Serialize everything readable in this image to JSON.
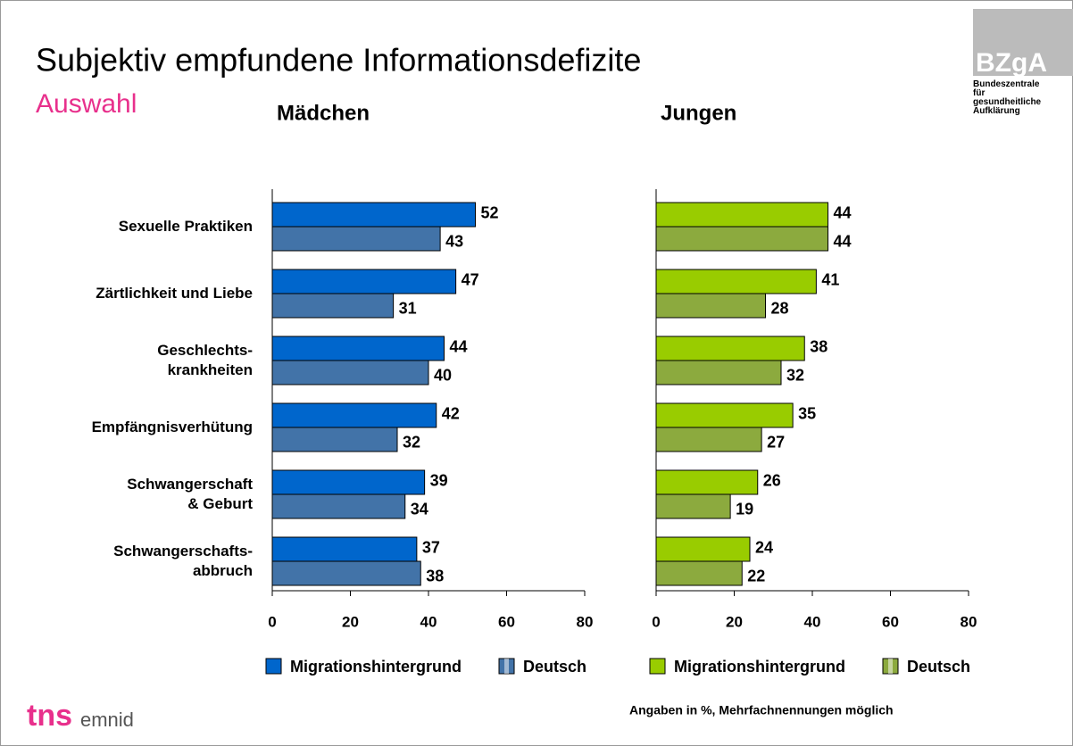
{
  "header": {
    "title": "Subjektiv empfundene Informationsdefizite",
    "subtitle": "Auswahl"
  },
  "logo": {
    "name": "BZgA",
    "text": "Bundeszentrale\nfür\ngesundheitliche\nAufklärung"
  },
  "tns_logo": {
    "brand": "tns",
    "name": "emnid"
  },
  "note": "Angaben in %,  Mehrfachnennungen möglich",
  "chart_data": [
    {
      "type": "bar",
      "orientation": "horizontal",
      "title": "Mädchen",
      "categories": [
        "Sexuelle Praktiken",
        "Zärtlichkeit und Liebe",
        "Geschlechts-\nkrankheiten",
        "Empfängnisverhütung",
        "Schwangerschaft\n& Geburt",
        "Schwangerschafts-\nabbruch"
      ],
      "series": [
        {
          "name": "Migrationshintergrund",
          "color": "#0066cc",
          "values": [
            52,
            47,
            44,
            42,
            39,
            37
          ]
        },
        {
          "name": "Deutsch",
          "color": "#4273a8",
          "values": [
            43,
            31,
            40,
            32,
            34,
            38
          ]
        }
      ],
      "xlim": [
        0,
        80
      ],
      "xticks": [
        0,
        20,
        40,
        60,
        80
      ]
    },
    {
      "type": "bar",
      "orientation": "horizontal",
      "title": "Jungen",
      "series": [
        {
          "name": "Migrationshintergrund",
          "color": "#99cc00",
          "values": [
            44,
            41,
            38,
            35,
            26,
            24
          ]
        },
        {
          "name": "Deutsch",
          "color": "#8caa3e",
          "values": [
            44,
            28,
            32,
            27,
            19,
            22
          ]
        }
      ],
      "xlim": [
        0,
        80
      ],
      "xticks": [
        0,
        20,
        40,
        60,
        80
      ]
    }
  ]
}
